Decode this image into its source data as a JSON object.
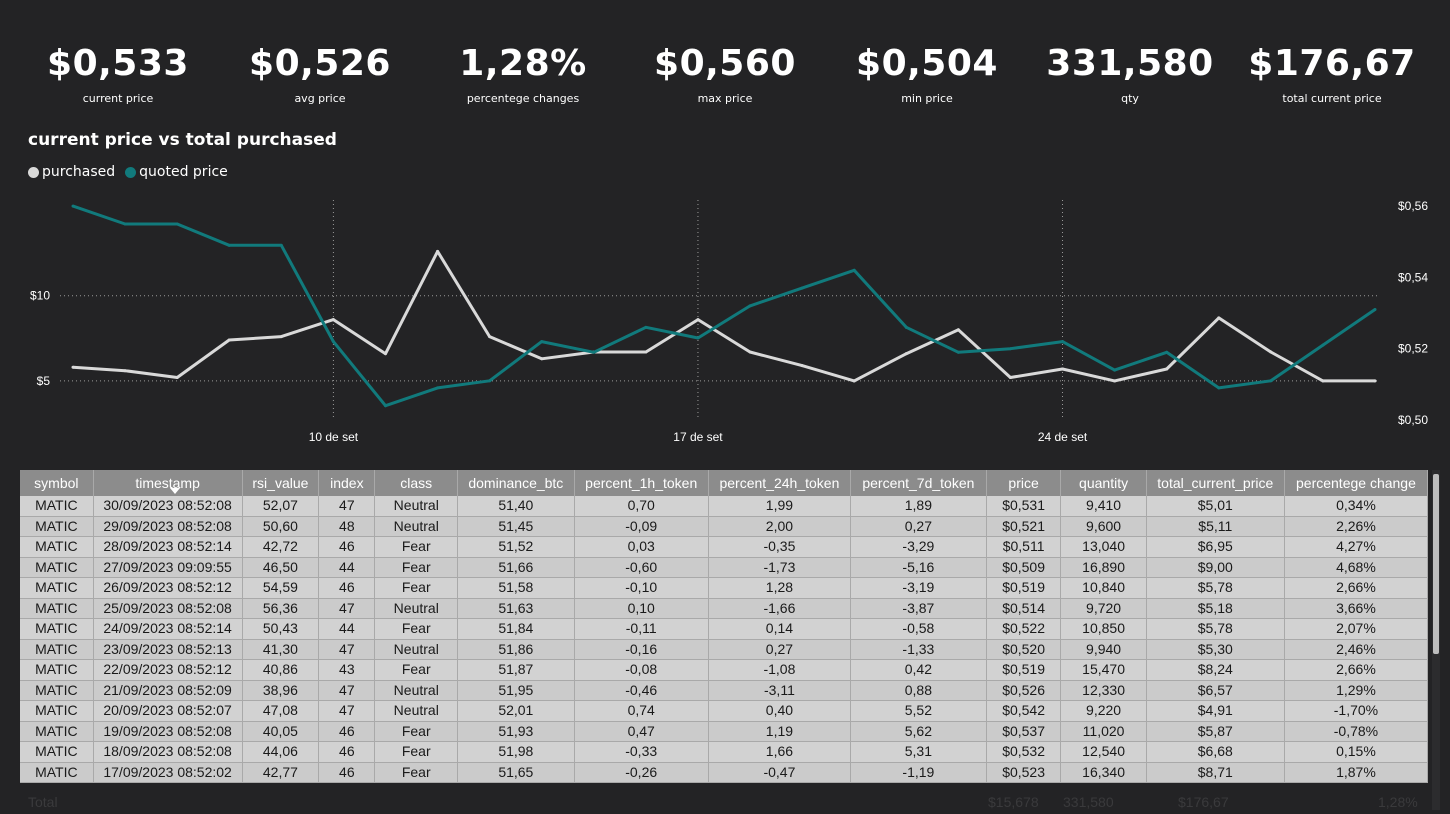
{
  "kpis": [
    {
      "value": "$0,533",
      "label": "current price"
    },
    {
      "value": "$0,526",
      "label": "avg price"
    },
    {
      "value": "1,28%",
      "label": "percentege changes"
    },
    {
      "value": "$0,560",
      "label": "max price"
    },
    {
      "value": "$0,504",
      "label": "min price"
    },
    {
      "value": "331,580",
      "label": "qty"
    },
    {
      "value": "$176,67",
      "label": "total current price"
    }
  ],
  "chart_data": {
    "type": "line",
    "title": "current price vs total purchased",
    "legend": [
      "purchased",
      "quoted price"
    ],
    "colors": {
      "purchased": "#d9d9d9",
      "quoted price": "#117a7c"
    },
    "x_ticks": [
      "10 de set",
      "17 de set",
      "24 de set"
    ],
    "y_left_ticks": [
      "$10",
      "$5"
    ],
    "y_right_ticks": [
      "$0,56",
      "$0,54",
      "$0,52",
      "$0,50"
    ],
    "y_left_range": [
      3,
      15.5
    ],
    "y_right_range": [
      0.5,
      0.562
    ],
    "x_range": [
      3,
      28
    ],
    "series": [
      {
        "name": "purchased",
        "axis": "left",
        "x": [
          3,
          4,
          5,
          6,
          7,
          8,
          9,
          10,
          11,
          12,
          13,
          14,
          15,
          16,
          17,
          18,
          19,
          20,
          21,
          22,
          23,
          24,
          25,
          26,
          27,
          28
        ],
        "values": [
          5.8,
          5.6,
          5.2,
          7.4,
          7.6,
          8.6,
          6.6,
          12.6,
          7.6,
          6.3,
          6.7,
          6.7,
          8.6,
          6.7,
          5.9,
          5.0,
          6.6,
          8.0,
          5.2,
          5.7,
          5.0,
          5.7,
          8.7,
          6.7,
          5.0,
          5.0
        ]
      },
      {
        "name": "quoted price",
        "axis": "right",
        "x": [
          3,
          4,
          5,
          6,
          7,
          8,
          9,
          10,
          11,
          12,
          13,
          14,
          15,
          16,
          17,
          18,
          19,
          20,
          21,
          22,
          23,
          24,
          25,
          26,
          27,
          28
        ],
        "values": [
          0.56,
          0.555,
          0.555,
          0.549,
          0.549,
          0.522,
          0.504,
          0.509,
          0.511,
          0.522,
          0.519,
          0.526,
          0.523,
          0.532,
          0.537,
          0.542,
          0.526,
          0.519,
          0.52,
          0.522,
          0.514,
          0.519,
          0.509,
          0.511,
          0.521,
          0.531
        ]
      }
    ]
  },
  "table": {
    "columns": [
      "symbol",
      "timestamp",
      "rsi_value",
      "index",
      "class",
      "dominance_btc",
      "percent_1h_token",
      "percent_24h_token",
      "percent_7d_token",
      "price",
      "quantity",
      "total_current_price",
      "percentege change"
    ],
    "rows": [
      [
        "MATIC",
        "30/09/2023 08:52:08",
        "52,07",
        "47",
        "Neutral",
        "51,40",
        "0,70",
        "1,99",
        "1,89",
        "$0,531",
        "9,410",
        "$5,01",
        "0,34%"
      ],
      [
        "MATIC",
        "29/09/2023 08:52:08",
        "50,60",
        "48",
        "Neutral",
        "51,45",
        "-0,09",
        "2,00",
        "0,27",
        "$0,521",
        "9,600",
        "$5,11",
        "2,26%"
      ],
      [
        "MATIC",
        "28/09/2023 08:52:14",
        "42,72",
        "46",
        "Fear",
        "51,52",
        "0,03",
        "-0,35",
        "-3,29",
        "$0,511",
        "13,040",
        "$6,95",
        "4,27%"
      ],
      [
        "MATIC",
        "27/09/2023 09:09:55",
        "46,50",
        "44",
        "Fear",
        "51,66",
        "-0,60",
        "-1,73",
        "-5,16",
        "$0,509",
        "16,890",
        "$9,00",
        "4,68%"
      ],
      [
        "MATIC",
        "26/09/2023 08:52:12",
        "54,59",
        "46",
        "Fear",
        "51,58",
        "-0,10",
        "1,28",
        "-3,19",
        "$0,519",
        "10,840",
        "$5,78",
        "2,66%"
      ],
      [
        "MATIC",
        "25/09/2023 08:52:08",
        "56,36",
        "47",
        "Neutral",
        "51,63",
        "0,10",
        "-1,66",
        "-3,87",
        "$0,514",
        "9,720",
        "$5,18",
        "3,66%"
      ],
      [
        "MATIC",
        "24/09/2023 08:52:14",
        "50,43",
        "44",
        "Fear",
        "51,84",
        "-0,11",
        "0,14",
        "-0,58",
        "$0,522",
        "10,850",
        "$5,78",
        "2,07%"
      ],
      [
        "MATIC",
        "23/09/2023 08:52:13",
        "41,30",
        "47",
        "Neutral",
        "51,86",
        "-0,16",
        "0,27",
        "-1,33",
        "$0,520",
        "9,940",
        "$5,30",
        "2,46%"
      ],
      [
        "MATIC",
        "22/09/2023 08:52:12",
        "40,86",
        "43",
        "Fear",
        "51,87",
        "-0,08",
        "-1,08",
        "0,42",
        "$0,519",
        "15,470",
        "$8,24",
        "2,66%"
      ],
      [
        "MATIC",
        "21/09/2023 08:52:09",
        "38,96",
        "47",
        "Neutral",
        "51,95",
        "-0,46",
        "-3,11",
        "0,88",
        "$0,526",
        "12,330",
        "$6,57",
        "1,29%"
      ],
      [
        "MATIC",
        "20/09/2023 08:52:07",
        "47,08",
        "47",
        "Neutral",
        "52,01",
        "0,74",
        "0,40",
        "5,52",
        "$0,542",
        "9,220",
        "$4,91",
        "-1,70%"
      ],
      [
        "MATIC",
        "19/09/2023 08:52:08",
        "40,05",
        "46",
        "Fear",
        "51,93",
        "0,47",
        "1,19",
        "5,62",
        "$0,537",
        "11,020",
        "$5,87",
        "-0,78%"
      ],
      [
        "MATIC",
        "18/09/2023 08:52:08",
        "44,06",
        "46",
        "Fear",
        "51,98",
        "-0,33",
        "1,66",
        "5,31",
        "$0,532",
        "12,540",
        "$6,68",
        "0,15%"
      ],
      [
        "MATIC",
        "17/09/2023 08:52:02",
        "42,77",
        "46",
        "Fear",
        "51,65",
        "-0,26",
        "-0,47",
        "-1,19",
        "$0,523",
        "16,340",
        "$8,71",
        "1,87%"
      ]
    ]
  },
  "totals": {
    "label": "Total",
    "price": "$15,678",
    "quantity": "331,580",
    "total_current_price": "$176,67",
    "percentege_change": "1,28%"
  }
}
